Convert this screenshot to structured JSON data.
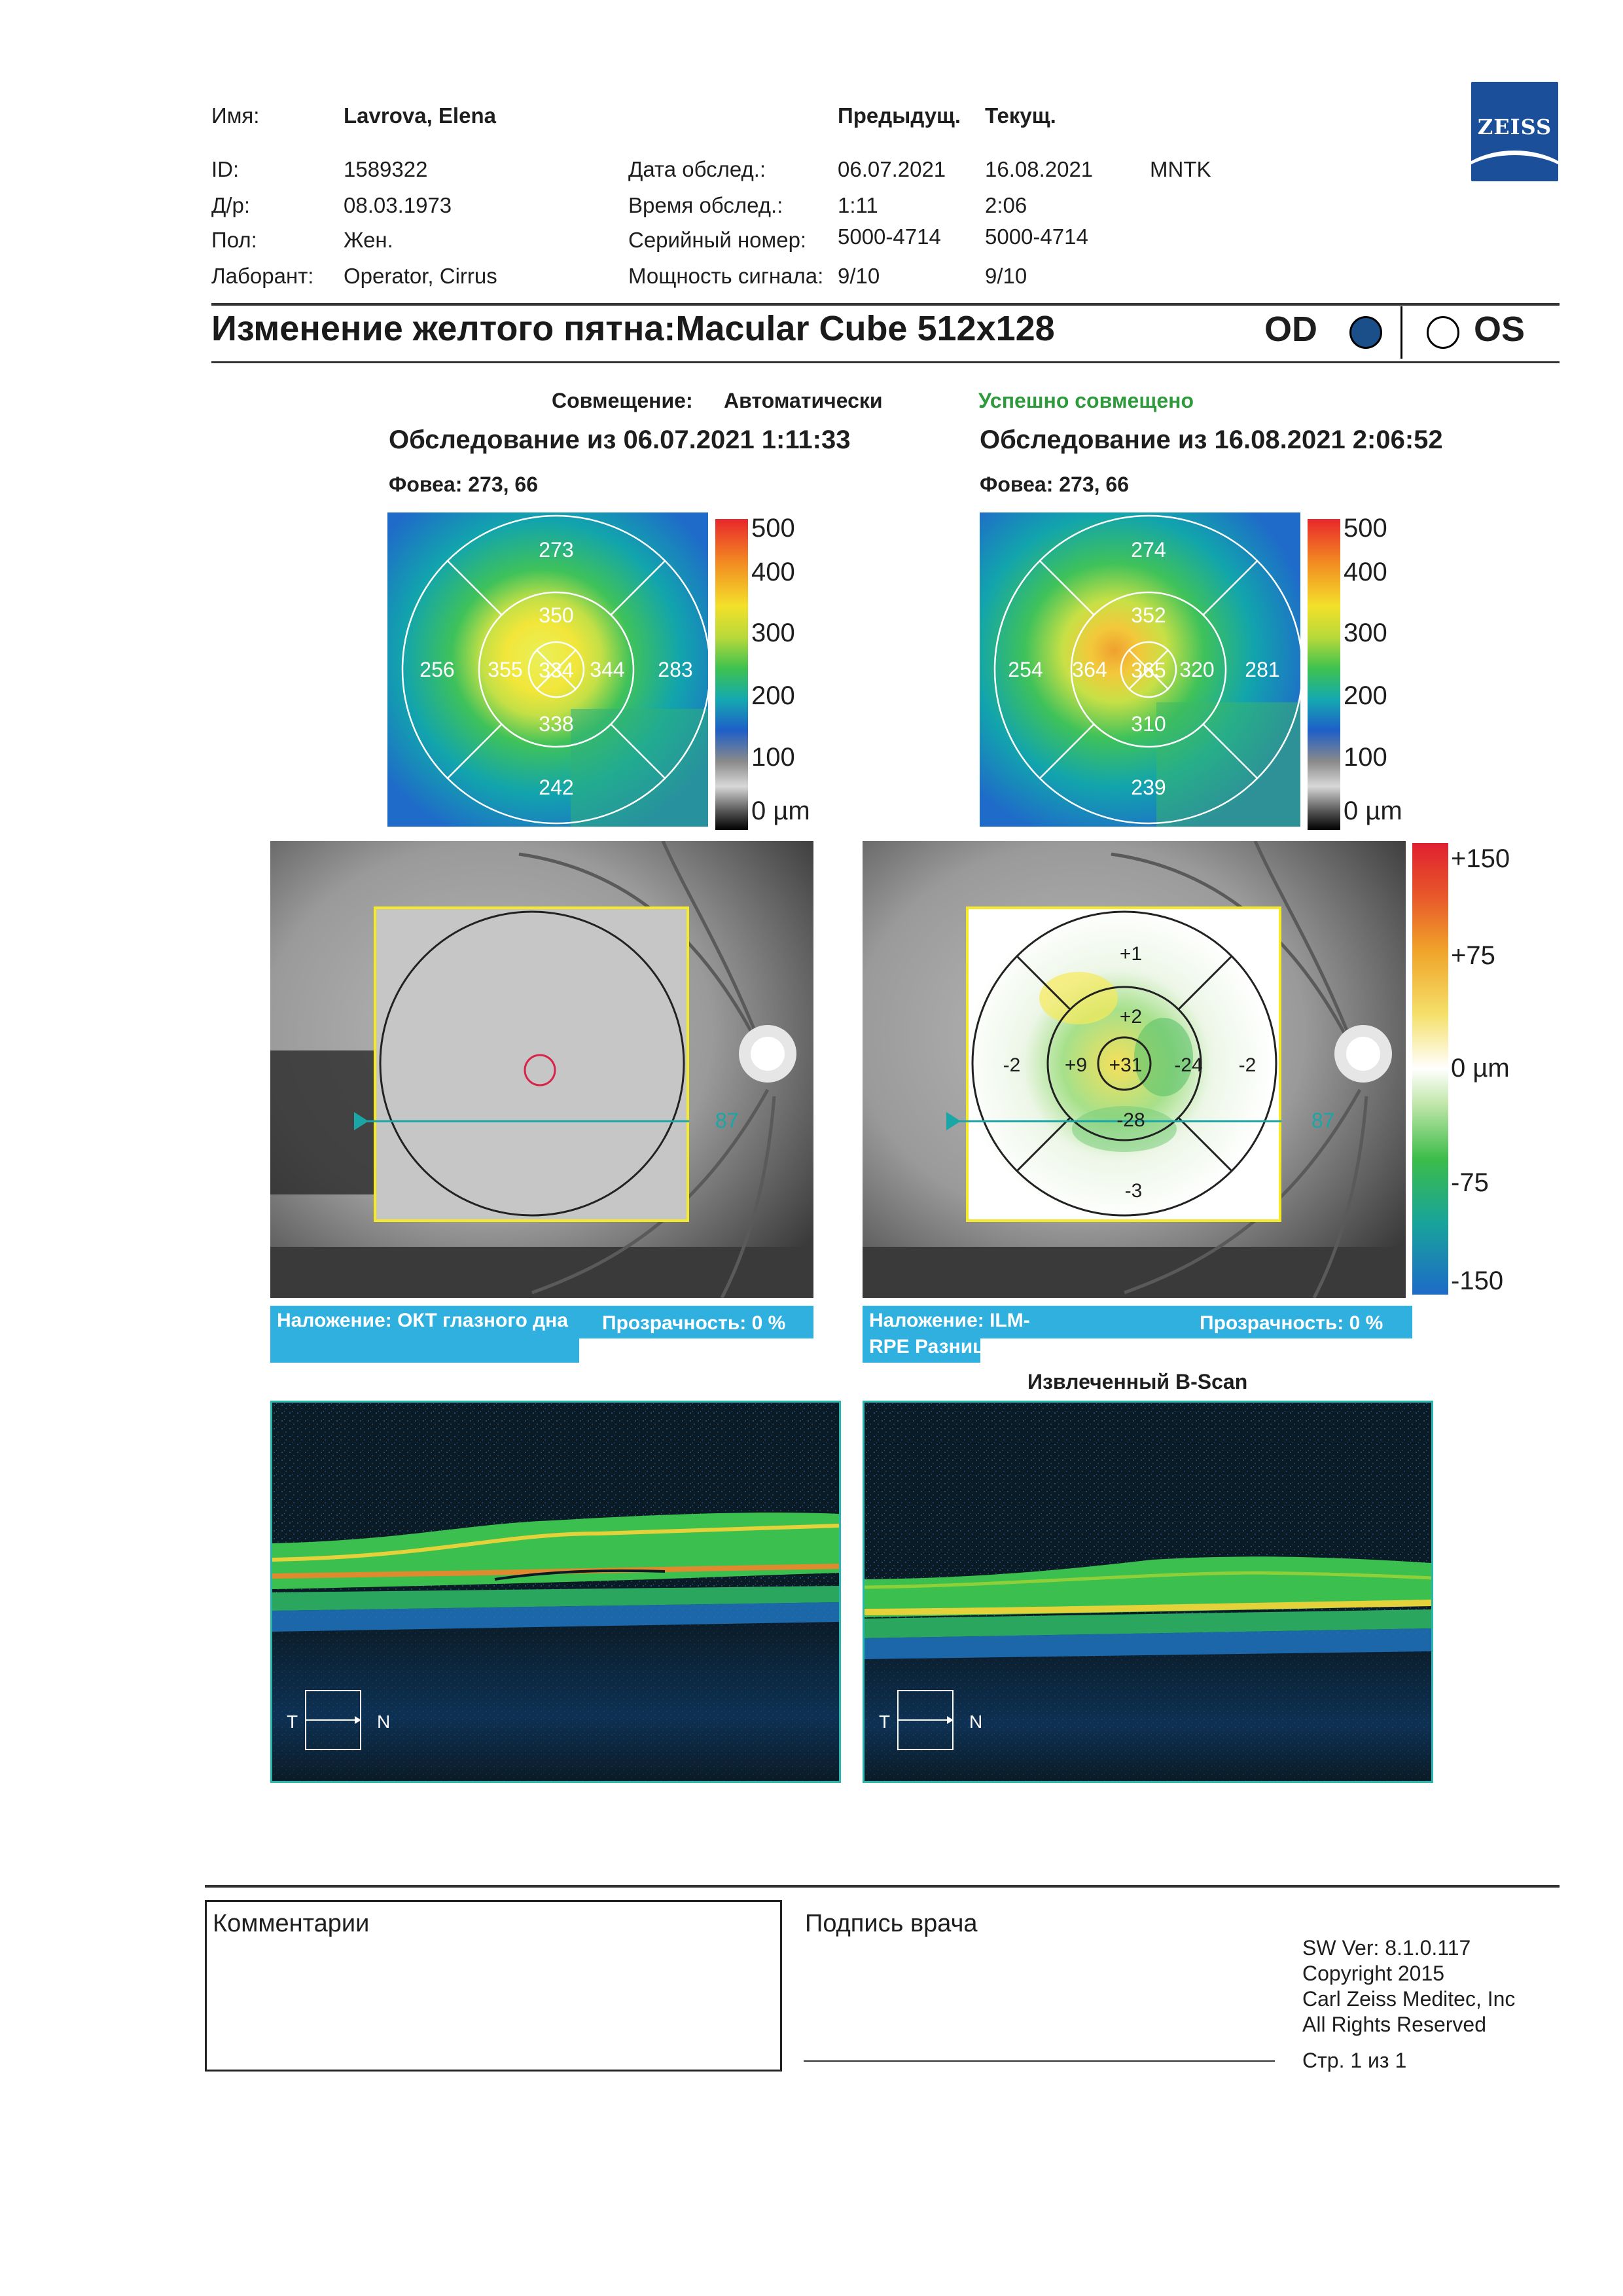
{
  "header": {
    "name_label": "Имя:",
    "name_value": "Lavrova, Elena",
    "col_prev": "Предыдущ.",
    "col_curr": "Текущ.",
    "id_label": "ID:",
    "id_value": "1589322",
    "dob_label": "Д/р:",
    "dob_value": "08.03.1973",
    "sex_label": "Пол:",
    "sex_value": "Жен.",
    "lab_label": "Лаборант:",
    "lab_value": "Operator, Cirrus",
    "exam_date_label": "Дата обслед.:",
    "exam_date_prev": "06.07.2021",
    "exam_date_curr": "16.08.2021",
    "clinic": "MNTK",
    "exam_time_label": "Время обслед.:",
    "exam_time_prev": "1:11",
    "exam_time_curr": "2:06",
    "serial_label": "Серийный номер:",
    "serial_prev": "5000-4714",
    "serial_curr": "5000-4714",
    "signal_label": "Мощность сигнала:",
    "signal_prev": "9/10",
    "signal_curr": "9/10",
    "logo_text": "ZEISS"
  },
  "title_bar": {
    "title": "Изменение желтого пятна:Macular Cube 512x128",
    "od": "OD",
    "os": "OS",
    "selected_eye": "OD"
  },
  "registration": {
    "label": "Совмещение:",
    "mode": "Автоматически",
    "status": "Успешно совмещено",
    "status_color": "#2e9a3c"
  },
  "exam_prev": {
    "title": "Обследование из 06.07.2021 1:11:33",
    "fovea": "Фовеа: 273, 66",
    "sectors": {
      "outer_top": "273",
      "outer_left": "256",
      "outer_right": "283",
      "outer_bottom": "242",
      "inner_top": "350",
      "inner_left": "355",
      "inner_right": "344",
      "inner_bottom": "338",
      "center": "334"
    }
  },
  "exam_curr": {
    "title": "Обследование из 16.08.2021 2:06:52",
    "fovea": "Фовеа: 273, 66",
    "sectors": {
      "outer_top": "274",
      "outer_left": "254",
      "outer_right": "281",
      "outer_bottom": "239",
      "inner_top": "352",
      "inner_left": "364",
      "inner_right": "320",
      "inner_bottom": "310",
      "center": "365"
    }
  },
  "thickness_scale": [
    "500",
    "400",
    "300",
    "200",
    "100",
    "0 µm"
  ],
  "difference_scale": [
    "+150",
    "+75",
    "0 µm",
    "-75",
    "-150"
  ],
  "difference_map": {
    "outer_top": "+1",
    "outer_left": "-2",
    "outer_right": "-2",
    "outer_bottom": "-3",
    "inner_top": "+2",
    "inner_left": "+9",
    "inner_right": "-24",
    "inner_bottom": "-28",
    "center": "+31"
  },
  "fundus": {
    "slice_number": "87"
  },
  "overlay_left": {
    "label": "Наложение: ОКТ глазного дна",
    "transparency": "Прозрачность: 0 %"
  },
  "overlay_right": {
    "label": "Наложение: ILM-RPE Разница",
    "transparency": "Прозрачность: 0 %"
  },
  "bscan": {
    "title": "Извлеченный B-Scan",
    "t": "T",
    "n": "N"
  },
  "footer": {
    "comments_label": "Комментарии",
    "signature_label": "Подпись врача",
    "sw_ver": "SW Ver: 8.1.0.117",
    "copyright": "Copyright 2015",
    "company": "Carl Zeiss Meditec, Inc",
    "rights": "All Rights Reserved",
    "page": "Стр. 1 из 1"
  }
}
